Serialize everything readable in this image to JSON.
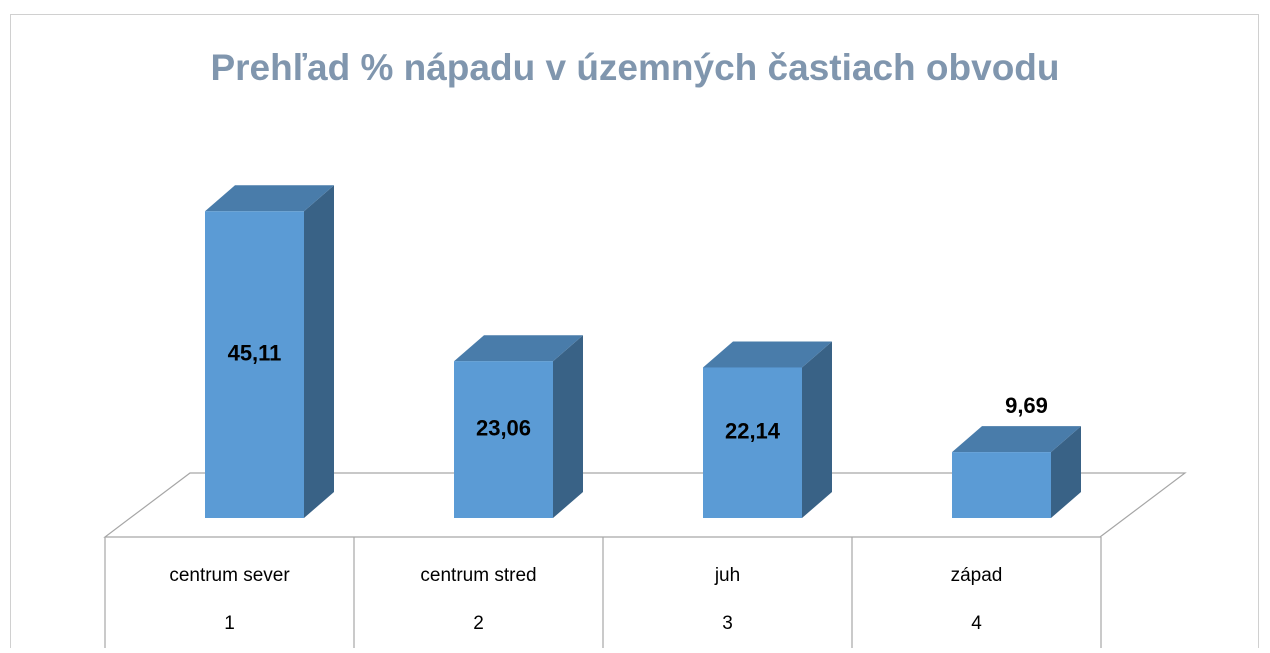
{
  "chart_data": {
    "type": "bar3d",
    "title": "Prehľad % nápadu v územných častiach obvodu",
    "categories": [
      "centrum sever",
      "centrum stred",
      "juh",
      "západ"
    ],
    "category_numbers": [
      1,
      2,
      3,
      4
    ],
    "values": [
      45.11,
      23.06,
      22.14,
      9.69
    ],
    "value_labels": [
      "45,11",
      "23,06",
      "22,14",
      "9,69"
    ],
    "color": "#5b9bd5"
  }
}
